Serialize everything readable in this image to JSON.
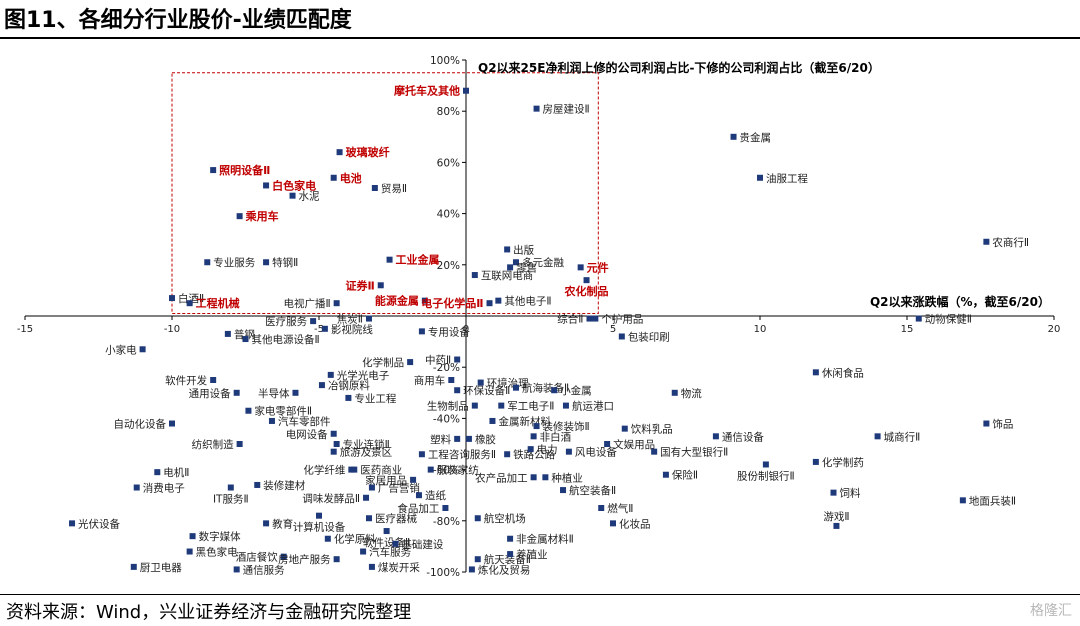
{
  "title": "图11、各细分行业股价-业绩匹配度",
  "source": "资料来源：Wind，兴业证券经济与金融研究院整理",
  "watermark": "格隆汇",
  "colors": {
    "point": "#1f3a7a",
    "highlight": "#c00000",
    "axis": "#000000",
    "label": "#222222"
  },
  "chart_data": {
    "type": "scatter",
    "xlabel": "Q2以来涨跌幅（%，截至6/20）",
    "ylabel": "Q2以来25E净利润上修的公司利润占比-下修的公司利润占比（截至6/20）",
    "xlim": [
      -15,
      20
    ],
    "ylim": [
      -100,
      100
    ],
    "xticks": [
      -15,
      -10,
      -5,
      0,
      5,
      10,
      15,
      20
    ],
    "yticks": [
      -100,
      -80,
      -60,
      -40,
      -20,
      20,
      40,
      60,
      80,
      100
    ],
    "x_tick_labels": [
      "-15",
      "-10",
      "-5",
      "0",
      "5",
      "10",
      "15",
      "20"
    ],
    "y_tick_labels": [
      "-100%",
      "-80%",
      "-60%",
      "-40%",
      "-20%",
      "20%",
      "40%",
      "60%",
      "80%",
      "100%"
    ],
    "grid": false,
    "highlight_box": {
      "x": [
        -10,
        4.5
      ],
      "y": [
        1,
        95
      ]
    },
    "points": [
      {
        "name": "摩托车及其他",
        "x": 0,
        "y": 88,
        "hl": true,
        "pos": "l"
      },
      {
        "name": "房屋建设Ⅱ",
        "x": 2.4,
        "y": 81,
        "pos": "r"
      },
      {
        "name": "贵金属",
        "x": 9.1,
        "y": 70,
        "pos": "r"
      },
      {
        "name": "油服工程",
        "x": 10,
        "y": 54,
        "pos": "r"
      },
      {
        "name": "玻璃玻纤",
        "x": -4.3,
        "y": 64,
        "hl": true,
        "pos": "r"
      },
      {
        "name": "照明设备Ⅱ",
        "x": -8.6,
        "y": 57,
        "hl": true,
        "pos": "r"
      },
      {
        "name": "电池",
        "x": -4.5,
        "y": 54,
        "hl": true,
        "pos": "r"
      },
      {
        "name": "白色家电",
        "x": -6.8,
        "y": 51,
        "hl": true,
        "pos": "r"
      },
      {
        "name": "贸易Ⅱ",
        "x": -3.1,
        "y": 50,
        "pos": "r"
      },
      {
        "name": "水泥",
        "x": -5.9,
        "y": 47,
        "pos": "r"
      },
      {
        "name": "乘用车",
        "x": -7.7,
        "y": 39,
        "hl": true,
        "pos": "r"
      },
      {
        "name": "农商行Ⅱ",
        "x": 17.7,
        "y": 29,
        "pos": "r"
      },
      {
        "name": "出版",
        "x": 1.4,
        "y": 26,
        "pos": "r"
      },
      {
        "name": "专业服务",
        "x": -8.8,
        "y": 21,
        "pos": "r"
      },
      {
        "name": "特钢Ⅱ",
        "x": -6.8,
        "y": 21,
        "pos": "r"
      },
      {
        "name": "工业金属",
        "x": -2.6,
        "y": 22,
        "hl": true,
        "pos": "r"
      },
      {
        "name": "多元金融",
        "x": 1.7,
        "y": 21,
        "pos": "r"
      },
      {
        "name": "元件",
        "x": 3.9,
        "y": 19,
        "hl": true,
        "pos": "r"
      },
      {
        "name": "零售",
        "x": 1.5,
        "y": 19,
        "pos": "r"
      },
      {
        "name": "互联网电商",
        "x": 0.3,
        "y": 16,
        "pos": "r"
      },
      {
        "name": "证券Ⅱ",
        "x": -2.9,
        "y": 12,
        "hl": true,
        "pos": "l"
      },
      {
        "name": "农化制品",
        "x": 4.1,
        "y": 14,
        "hl": true,
        "pos": "b"
      },
      {
        "name": "白酒Ⅱ",
        "x": -10,
        "y": 7,
        "pos": "r"
      },
      {
        "name": "工程机械",
        "x": -9.4,
        "y": 5,
        "hl": true,
        "pos": "r"
      },
      {
        "name": "电视广播Ⅱ",
        "x": -4.4,
        "y": 5,
        "pos": "l"
      },
      {
        "name": "能源金属",
        "x": -1.4,
        "y": 6,
        "hl": true,
        "pos": "l"
      },
      {
        "name": "电子化学品Ⅱ",
        "x": 0.8,
        "y": 5,
        "hl": true,
        "pos": "l"
      },
      {
        "name": "其他电子Ⅱ",
        "x": 1.1,
        "y": 6,
        "pos": "r"
      },
      {
        "name": "医疗服务",
        "x": -5.2,
        "y": -2,
        "pos": "l"
      },
      {
        "name": "焦炭Ⅱ",
        "x": -3.3,
        "y": -1,
        "pos": "l"
      },
      {
        "name": "影视院线",
        "x": -4.8,
        "y": -5,
        "pos": "r"
      },
      {
        "name": "专用设备",
        "x": -1.5,
        "y": -6,
        "pos": "r"
      },
      {
        "name": "综合Ⅱ",
        "x": 4.2,
        "y": -1,
        "pos": "l"
      },
      {
        "name": "个护用品",
        "x": 4.4,
        "y": -1,
        "pos": "r"
      },
      {
        "name": "动物保健Ⅱ",
        "x": 15.4,
        "y": -1,
        "pos": "r"
      },
      {
        "name": "普钢",
        "x": -8.1,
        "y": -7,
        "pos": "r"
      },
      {
        "name": "其他电源设备Ⅱ",
        "x": -7.5,
        "y": -9,
        "pos": "r"
      },
      {
        "name": "包装印刷",
        "x": 5.3,
        "y": -8,
        "pos": "r"
      },
      {
        "name": "小家电",
        "x": -11,
        "y": -13,
        "pos": "l"
      },
      {
        "name": "化学制品",
        "x": -1.9,
        "y": -18,
        "pos": "l"
      },
      {
        "name": "中药Ⅱ",
        "x": -0.3,
        "y": -17,
        "pos": "l"
      },
      {
        "name": "光学光电子",
        "x": -4.6,
        "y": -23,
        "pos": "r"
      },
      {
        "name": "软件开发",
        "x": -8.6,
        "y": -25,
        "pos": "l"
      },
      {
        "name": "商用车",
        "x": -0.5,
        "y": -25,
        "pos": "l"
      },
      {
        "name": "环境治理",
        "x": 0.5,
        "y": -26,
        "pos": "r"
      },
      {
        "name": "冶钢原料",
        "x": -4.9,
        "y": -27,
        "pos": "r"
      },
      {
        "name": "航海装备Ⅱ",
        "x": 1.7,
        "y": -28,
        "pos": "r"
      },
      {
        "name": "通用设备",
        "x": -7.8,
        "y": -30,
        "pos": "l"
      },
      {
        "name": "半导体",
        "x": -5.8,
        "y": -30,
        "pos": "l"
      },
      {
        "name": "环保设备Ⅱ",
        "x": -0.3,
        "y": -29,
        "pos": "r"
      },
      {
        "name": "小金属",
        "x": 3,
        "y": -29,
        "pos": "r"
      },
      {
        "name": "物流",
        "x": 7.1,
        "y": -30,
        "pos": "r"
      },
      {
        "name": "专业工程",
        "x": -4,
        "y": -32,
        "pos": "r"
      },
      {
        "name": "休闲食品",
        "x": 11.9,
        "y": -22,
        "pos": "r"
      },
      {
        "name": "生物制品",
        "x": 0.3,
        "y": -35,
        "pos": "l"
      },
      {
        "name": "军工电子Ⅱ",
        "x": 1.2,
        "y": -35,
        "pos": "r"
      },
      {
        "name": "航运港口",
        "x": 3.4,
        "y": -35,
        "pos": "r"
      },
      {
        "name": "家电零部件Ⅱ",
        "x": -7.4,
        "y": -37,
        "pos": "r"
      },
      {
        "name": "自动化设备",
        "x": -10,
        "y": -42,
        "pos": "l"
      },
      {
        "name": "汽车零部件",
        "x": -6.6,
        "y": -41,
        "pos": "r"
      },
      {
        "name": "金属新材料",
        "x": 0.9,
        "y": -41,
        "pos": "r"
      },
      {
        "name": "装修装饰Ⅱ",
        "x": 2.4,
        "y": -43,
        "pos": "r"
      },
      {
        "name": "饮料乳品",
        "x": 5.4,
        "y": -44,
        "pos": "r"
      },
      {
        "name": "饰品",
        "x": 17.7,
        "y": -42,
        "pos": "r"
      },
      {
        "name": "电网设备",
        "x": -4.5,
        "y": -46,
        "pos": "l"
      },
      {
        "name": "非白酒",
        "x": 2.3,
        "y": -47,
        "pos": "r"
      },
      {
        "name": "通信设备",
        "x": 8.5,
        "y": -47,
        "pos": "r"
      },
      {
        "name": "城商行Ⅱ",
        "x": 14,
        "y": -47,
        "pos": "r"
      },
      {
        "name": "纺织制造",
        "x": -7.7,
        "y": -50,
        "pos": "l"
      },
      {
        "name": "专业连锁Ⅱ",
        "x": -4.4,
        "y": -50,
        "pos": "r"
      },
      {
        "name": "塑料",
        "x": -0.3,
        "y": -48,
        "pos": "l"
      },
      {
        "name": "橡胶",
        "x": 0.1,
        "y": -48,
        "pos": "r"
      },
      {
        "name": "文娱用品",
        "x": 4.8,
        "y": -50,
        "pos": "r"
      },
      {
        "name": "旅游及景区",
        "x": -4.5,
        "y": -53,
        "pos": "r"
      },
      {
        "name": "工程咨询服务Ⅱ",
        "x": -1.5,
        "y": -54,
        "pos": "r"
      },
      {
        "name": "铁路公路",
        "x": 1.4,
        "y": -54,
        "pos": "r"
      },
      {
        "name": "电力",
        "x": 2.2,
        "y": -52,
        "pos": "r"
      },
      {
        "name": "风电设备",
        "x": 3.5,
        "y": -53,
        "pos": "r"
      },
      {
        "name": "国有大型银行Ⅱ",
        "x": 6.4,
        "y": -53,
        "pos": "r"
      },
      {
        "name": "电机Ⅱ",
        "x": -10.5,
        "y": -61,
        "pos": "r"
      },
      {
        "name": "化学纤维",
        "x": -3.9,
        "y": -60,
        "pos": "l"
      },
      {
        "name": "医药商业",
        "x": -3.8,
        "y": -60,
        "pos": "r"
      },
      {
        "name": "服装家纺",
        "x": -1.2,
        "y": -60,
        "pos": "r"
      },
      {
        "name": "农产品加工",
        "x": 2.3,
        "y": -63,
        "pos": "l"
      },
      {
        "name": "种植业",
        "x": 2.7,
        "y": -63,
        "pos": "r"
      },
      {
        "name": "保险Ⅱ",
        "x": 6.8,
        "y": -62,
        "pos": "r"
      },
      {
        "name": "股份制银行Ⅱ",
        "x": 10.2,
        "y": -58,
        "pos": "b"
      },
      {
        "name": "化学制药",
        "x": 11.9,
        "y": -57,
        "pos": "r"
      },
      {
        "name": "消费电子",
        "x": -11.2,
        "y": -67,
        "pos": "r"
      },
      {
        "name": "装修建材",
        "x": -7.1,
        "y": -66,
        "pos": "r"
      },
      {
        "name": "家居用品",
        "x": -1.8,
        "y": -64,
        "pos": "l"
      },
      {
        "name": "广告营销",
        "x": -3.2,
        "y": -67,
        "pos": "r"
      },
      {
        "name": "航空装备Ⅱ",
        "x": 3.3,
        "y": -68,
        "pos": "r"
      },
      {
        "name": "饲料",
        "x": 12.5,
        "y": -69,
        "pos": "r"
      },
      {
        "name": "IT服务Ⅱ",
        "x": -8,
        "y": -67,
        "pos": "b"
      },
      {
        "name": "调味发酵品Ⅱ",
        "x": -3.4,
        "y": -71,
        "pos": "l"
      },
      {
        "name": "造纸",
        "x": -1.6,
        "y": -70,
        "pos": "r"
      },
      {
        "name": "地面兵装Ⅱ",
        "x": 16.9,
        "y": -72,
        "pos": "r"
      },
      {
        "name": "食品加工",
        "x": -0.7,
        "y": -75,
        "pos": "l"
      },
      {
        "name": "燃气Ⅱ",
        "x": 4.6,
        "y": -75,
        "pos": "r"
      },
      {
        "name": "游戏Ⅱ",
        "x": 12.6,
        "y": -82,
        "pos": "t"
      },
      {
        "name": "光伏设备",
        "x": -13.4,
        "y": -81,
        "pos": "r"
      },
      {
        "name": "教育",
        "x": -6.8,
        "y": -81,
        "pos": "r"
      },
      {
        "name": "医疗器械",
        "x": -3.3,
        "y": -79,
        "pos": "r"
      },
      {
        "name": "航空机场",
        "x": 0.4,
        "y": -79,
        "pos": "r"
      },
      {
        "name": "化妆品",
        "x": 5,
        "y": -81,
        "pos": "r"
      },
      {
        "name": "计算机设备",
        "x": -5,
        "y": -78,
        "pos": "b"
      },
      {
        "name": "数字媒体",
        "x": -9.3,
        "y": -86,
        "pos": "r"
      },
      {
        "name": "软件设备Ⅱ",
        "x": -2.7,
        "y": -84,
        "pos": "b"
      },
      {
        "name": "化学原料",
        "x": -4.7,
        "y": -87,
        "pos": "r"
      },
      {
        "name": "非金属材料Ⅱ",
        "x": 1.5,
        "y": -87,
        "pos": "r"
      },
      {
        "name": "黑色家电",
        "x": -9.4,
        "y": -92,
        "pos": "r"
      },
      {
        "name": "汽车服务",
        "x": -3.5,
        "y": -92,
        "pos": "r"
      },
      {
        "name": "基础建设",
        "x": -2.4,
        "y": -89,
        "pos": "r"
      },
      {
        "name": "航天装备Ⅱ",
        "x": 0.4,
        "y": -95,
        "pos": "r"
      },
      {
        "name": "养殖业",
        "x": 1.5,
        "y": -93,
        "pos": "r"
      },
      {
        "name": "酒店餐饮",
        "x": -6.2,
        "y": -94,
        "pos": "l"
      },
      {
        "name": "房地产服务",
        "x": -4.4,
        "y": -95,
        "pos": "l"
      },
      {
        "name": "厨卫电器",
        "x": -11.3,
        "y": -98,
        "pos": "r"
      },
      {
        "name": "通信服务",
        "x": -7.8,
        "y": -99,
        "pos": "r"
      },
      {
        "name": "煤炭开采",
        "x": -3.2,
        "y": -98,
        "pos": "r"
      },
      {
        "name": "炼化及贸易",
        "x": 0.2,
        "y": -99,
        "pos": "r"
      }
    ]
  }
}
